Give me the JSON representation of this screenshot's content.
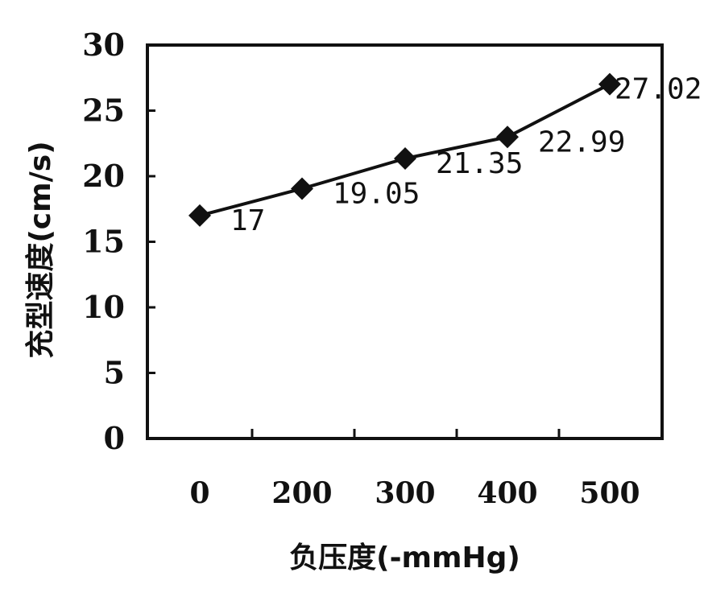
{
  "chart_data": {
    "type": "line",
    "categories": [
      "0",
      "200",
      "300",
      "400",
      "500"
    ],
    "values": [
      17,
      19.05,
      21.35,
      22.99,
      27.02
    ],
    "data_labels": [
      "17",
      "19.05",
      "21.35",
      "22.99",
      "27.02"
    ],
    "xlabel": "负压度(-mmHg)",
    "ylabel": "充型速度(cm/s)",
    "ylim": [
      0,
      30
    ],
    "yticks": [
      "0",
      "5",
      "10",
      "15",
      "20",
      "25",
      "30"
    ],
    "grid": false,
    "marker": "diamond",
    "colors": {
      "line": "#111111",
      "marker": "#111111",
      "axis": "#111111",
      "background": "#ffffff"
    }
  }
}
